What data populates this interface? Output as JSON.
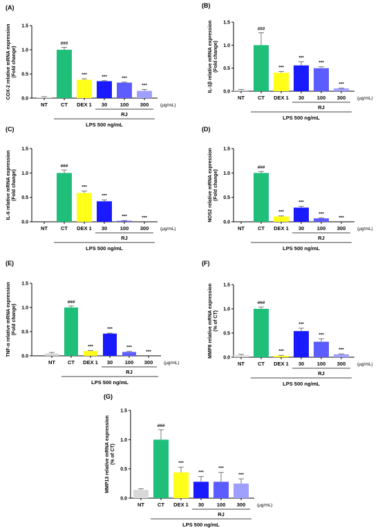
{
  "colors": {
    "NT": "#d9d9d9",
    "CT": "#1fbf7a",
    "DEX 1": "#ffff1a",
    "RJ 30": "#1a1aff",
    "RJ 100": "#5c5cff",
    "RJ 300": "#9f9fff",
    "axis": "#000000"
  },
  "chart_data": [
    {
      "type": "bar",
      "panel": "(A)",
      "ylabel_line1": "COX-2 relative mRNA expression",
      "ylabel_line2": "(Fold change)",
      "categories": [
        "NT",
        "CT",
        "DEX 1",
        "30",
        "100",
        "300"
      ],
      "values": [
        0.02,
        1.0,
        0.38,
        0.35,
        0.32,
        0.15
      ],
      "errors": [
        0.01,
        0.05,
        0.02,
        0.01,
        0.01,
        0.03
      ],
      "significance": [
        "",
        "###",
        "***",
        "***",
        "***",
        "***"
      ],
      "ylim": [
        0,
        1.5
      ],
      "yticks": [
        "0.0",
        "0.5",
        "1.0",
        "1.5"
      ],
      "unit": "(μg/mL)",
      "group_label": "RJ",
      "lps_label": "LPS 500 ng/mL"
    },
    {
      "type": "bar",
      "panel": "(B)",
      "ylabel_line1": "IL-1β relative mRNA expression",
      "ylabel_line2": "(Fold change)",
      "categories": [
        "NT",
        "CT",
        "DEX 1",
        "30",
        "100",
        "300"
      ],
      "values": [
        0.03,
        1.0,
        0.4,
        0.56,
        0.5,
        0.06
      ],
      "errors": [
        0.01,
        0.27,
        0.03,
        0.08,
        0.03,
        0.01
      ],
      "significance": [
        "",
        "###",
        "***",
        "***",
        "***",
        "***"
      ],
      "ylim": [
        0,
        1.5
      ],
      "yticks": [
        "0.0",
        "0.5",
        "1.0",
        "1.5"
      ],
      "unit": "(μg/mL)",
      "group_label": "RJ",
      "lps_label": "LPS 500 ng/mL"
    },
    {
      "type": "bar",
      "panel": "(C)",
      "ylabel_line1": "IL-6 relative mRNA expression",
      "ylabel_line2": "(Fold change)",
      "categories": [
        "NT",
        "CT",
        "DEX 1",
        "30",
        "100",
        "300"
      ],
      "values": [
        0.0,
        1.0,
        0.59,
        0.42,
        0.02,
        0.0
      ],
      "errors": [
        0.0,
        0.06,
        0.04,
        0.03,
        0.005,
        0.0
      ],
      "significance": [
        "",
        "###",
        "***",
        "***",
        "***",
        "***"
      ],
      "ylim": [
        0,
        1.5
      ],
      "yticks": [
        "0.0",
        "0.5",
        "1.0",
        "1.5"
      ],
      "unit": "(μg/mL)",
      "group_label": "RJ",
      "lps_label": "LPS 500 ng/mL"
    },
    {
      "type": "bar",
      "panel": "(D)",
      "ylabel_line1": "NOS2 relative mRNA expression",
      "ylabel_line2": "(Fold change)",
      "categories": [
        "NT",
        "CT",
        "DEX 1",
        "30",
        "100",
        "300"
      ],
      "values": [
        0.0,
        1.0,
        0.11,
        0.29,
        0.07,
        0.0
      ],
      "errors": [
        0.0,
        0.03,
        0.01,
        0.03,
        0.01,
        0.0
      ],
      "significance": [
        "",
        "###",
        "***",
        "***",
        "***",
        "***"
      ],
      "ylim": [
        0,
        1.5
      ],
      "yticks": [
        "0.0",
        "0.5",
        "1.0",
        "1.5"
      ],
      "unit": "(μg/mL)",
      "group_label": "RJ",
      "lps_label": "LPS 500 ng/mL"
    },
    {
      "type": "bar",
      "panel": "(E)",
      "ylabel_line1": "TNF-α relative mRNA expression",
      "ylabel_line2": "(Fold change)",
      "categories": [
        "NT",
        "CT",
        "DEX 1",
        "30",
        "100",
        "300"
      ],
      "values": [
        0.05,
        1.0,
        0.1,
        0.46,
        0.08,
        0.0
      ],
      "errors": [
        0.02,
        0.03,
        0.01,
        0.01,
        0.01,
        0.0
      ],
      "significance": [
        "",
        "###",
        "***",
        "***",
        "***",
        "***"
      ],
      "ylim": [
        0,
        1.5
      ],
      "yticks": [
        "0.0",
        "0.5",
        "1.0",
        "1.5"
      ],
      "unit": "(μg/mL)",
      "group_label": "RJ",
      "lps_label": "LPS 500 ng/mL"
    },
    {
      "type": "bar",
      "panel": "(F)",
      "ylabel_line1": "MMP8 relative mRNA expression",
      "ylabel_line2": "(% of CT)",
      "categories": [
        "NT",
        "CT",
        "DEX 1",
        "30",
        "100",
        "300"
      ],
      "values": [
        0.04,
        1.0,
        0.03,
        0.54,
        0.32,
        0.06
      ],
      "errors": [
        0.02,
        0.04,
        0.01,
        0.06,
        0.06,
        0.01
      ],
      "significance": [
        "",
        "###",
        "***",
        "***",
        "***",
        "***"
      ],
      "ylim": [
        0,
        1.5
      ],
      "yticks": [
        "0.0",
        "0.5",
        "1.0",
        "1.5"
      ],
      "unit": "(μg/mL)",
      "group_label": "RJ",
      "lps_label": "LPS 500 ng/mL"
    },
    {
      "type": "bar",
      "panel": "(G)",
      "ylabel_line1": "MMP13 relative mRNA expression",
      "ylabel_line2": "(% of CT)",
      "categories": [
        "NT",
        "CT",
        "DEX 1",
        "30",
        "100",
        "300"
      ],
      "values": [
        0.14,
        1.0,
        0.44,
        0.28,
        0.28,
        0.25
      ],
      "errors": [
        0.02,
        0.17,
        0.09,
        0.09,
        0.16,
        0.08
      ],
      "significance": [
        "",
        "###",
        "***",
        "***",
        "***",
        "***"
      ],
      "ylim": [
        0,
        1.5
      ],
      "yticks": [
        "0.0",
        "0.5",
        "1.0",
        "1.5"
      ],
      "unit": "(μg/mL)",
      "group_label": "RJ",
      "lps_label": "LPS 500 ng/mL"
    }
  ]
}
